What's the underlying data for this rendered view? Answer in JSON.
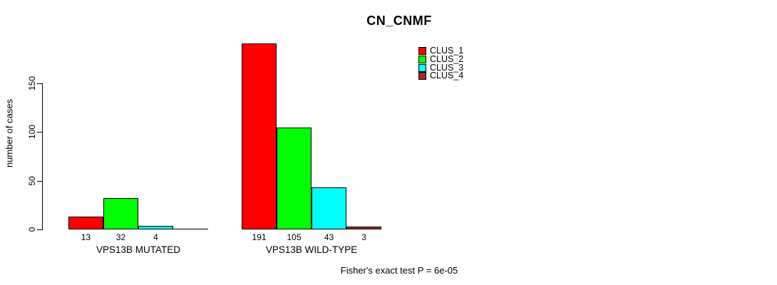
{
  "chart_data": {
    "type": "bar",
    "title": "CN_CNMF",
    "ylabel": "number of cases",
    "xlabel": "",
    "yticks": [
      0,
      50,
      100,
      150
    ],
    "ylim": [
      0,
      200
    ],
    "grid": false,
    "legend_position": "top-right",
    "categories": [
      "VPS13B MUTATED",
      "VPS13B WILD-TYPE"
    ],
    "series": [
      {
        "name": "CLUS_1",
        "color": "#FF0000",
        "values": [
          13,
          191
        ]
      },
      {
        "name": "CLUS_2",
        "color": "#00FF00",
        "values": [
          32,
          105
        ]
      },
      {
        "name": "CLUS_3",
        "color": "#00FFFF",
        "values": [
          4,
          43
        ]
      },
      {
        "name": "CLUS_4",
        "color": "#A52A2A",
        "values": [
          0,
          3
        ]
      }
    ],
    "bar_value_labels": {
      "VPS13B MUTATED": [
        "13",
        "32",
        "4",
        ""
      ],
      "VPS13B WILD-TYPE": [
        "191",
        "105",
        "43",
        "3"
      ]
    },
    "footnote": "Fisher's exact test P = 6e-05",
    "axis_color": "#000000",
    "background_color": "#FFFFFF"
  }
}
